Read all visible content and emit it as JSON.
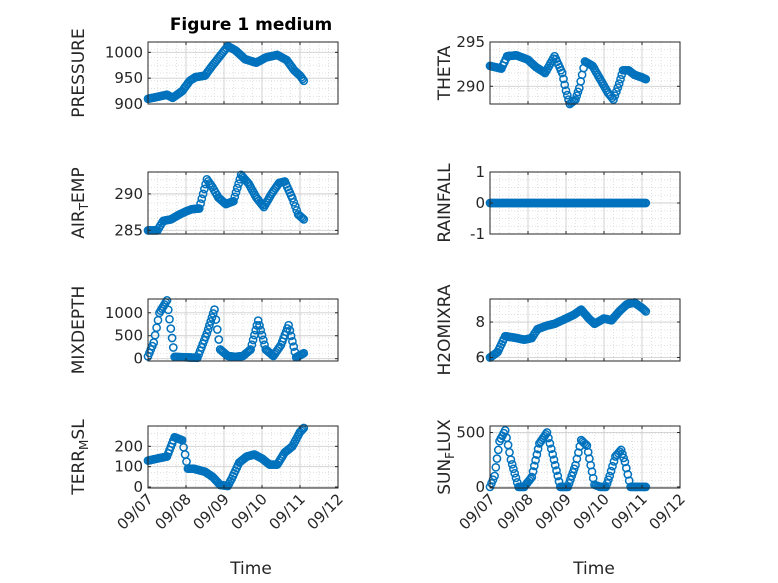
{
  "figure": {
    "title": "Figure 1 medium",
    "xlabel": "Time"
  },
  "colors": {
    "marker": "#0072bd",
    "axis": "#262626",
    "grid": "#d6d6d6"
  },
  "chart_data": [
    {
      "type": "scatter",
      "ylabel": "PRESSURE",
      "marker": "circle",
      "ylim": [
        900,
        1020
      ],
      "yticks": [
        900,
        950,
        1000
      ],
      "xlim": [
        0,
        5
      ],
      "grid": true,
      "x": [
        0.0,
        0.25,
        0.5,
        0.65,
        0.9,
        1.1,
        1.25,
        1.5,
        1.7,
        1.95,
        2.1,
        2.3,
        2.55,
        2.85,
        3.1,
        3.4,
        3.65,
        3.85,
        4.0,
        4.1
      ],
      "y": [
        910,
        914,
        918,
        912,
        925,
        945,
        952,
        955,
        975,
        998,
        1012,
        1004,
        987,
        980,
        990,
        995,
        985,
        965,
        955,
        945
      ]
    },
    {
      "type": "scatter",
      "ylabel": "THETA",
      "marker": "circle",
      "ylim": [
        288,
        295
      ],
      "yticks": [
        290,
        295
      ],
      "xlim": [
        0,
        5
      ],
      "grid": true,
      "x": [
        0.0,
        0.3,
        0.45,
        0.7,
        1.0,
        1.2,
        1.45,
        1.7,
        1.9,
        2.0,
        2.1,
        2.25,
        2.35,
        2.5,
        2.7,
        2.9,
        3.1,
        3.25,
        3.4,
        3.5,
        3.65,
        3.8,
        4.0,
        4.1
      ],
      "y": [
        292.3,
        292.0,
        293.4,
        293.5,
        293.0,
        292.2,
        291.5,
        293.4,
        291.5,
        289.5,
        288.0,
        288.5,
        289.8,
        292.8,
        292.3,
        290.8,
        289.3,
        288.5,
        290.3,
        291.8,
        291.8,
        291.3,
        291.0,
        290.8
      ]
    },
    {
      "type": "scatter",
      "ylabel": "AIR_TEMP",
      "marker": "circle",
      "ylim": [
        284.5,
        293
      ],
      "yticks": [
        285,
        290
      ],
      "xlim": [
        0,
        5
      ],
      "grid": true,
      "x": [
        0.0,
        0.25,
        0.4,
        0.6,
        0.8,
        1.0,
        1.15,
        1.35,
        1.55,
        1.7,
        1.85,
        2.05,
        2.25,
        2.45,
        2.65,
        2.85,
        3.05,
        3.25,
        3.45,
        3.6,
        3.8,
        3.95,
        4.1
      ],
      "y": [
        285.0,
        285.0,
        286.3,
        286.5,
        287.1,
        287.6,
        287.9,
        288.0,
        292.0,
        290.9,
        289.5,
        288.6,
        289.0,
        292.6,
        291.4,
        289.5,
        288.2,
        290.0,
        291.5,
        291.7,
        289.4,
        287.2,
        286.5
      ]
    },
    {
      "type": "scatter",
      "ylabel": "RAINFALL",
      "marker": "circle",
      "ylim": [
        -1,
        1
      ],
      "yticks": [
        -1,
        0,
        1
      ],
      "xlim": [
        0,
        5
      ],
      "grid": true,
      "x": [
        0.0,
        4.1
      ],
      "y": [
        0,
        0
      ]
    },
    {
      "type": "scatter",
      "ylabel": "MIXDEPTH",
      "marker": "circle",
      "ylim": [
        -50,
        1300
      ],
      "yticks": [
        0,
        500,
        1000
      ],
      "xlim": [
        0,
        5
      ],
      "grid": true,
      "x": [
        0.0,
        0.15,
        0.3,
        0.5,
        0.7,
        1.0,
        1.3,
        1.55,
        1.75,
        1.9,
        2.1,
        2.3,
        2.5,
        2.7,
        2.9,
        3.1,
        3.3,
        3.5,
        3.7,
        3.9,
        4.1
      ],
      "y": [
        50,
        350,
        1000,
        1270,
        40,
        30,
        20,
        550,
        1070,
        200,
        60,
        40,
        60,
        200,
        830,
        200,
        60,
        300,
        730,
        30,
        120
      ]
    },
    {
      "type": "scatter",
      "ylabel": "H2OMIXRA",
      "marker": "circle",
      "ylim": [
        5.8,
        9.3
      ],
      "yticks": [
        6,
        8
      ],
      "xlim": [
        0,
        5
      ],
      "grid": true,
      "x": [
        0.0,
        0.2,
        0.4,
        0.7,
        0.9,
        1.1,
        1.25,
        1.5,
        1.7,
        1.9,
        2.0,
        2.2,
        2.4,
        2.6,
        2.75,
        3.0,
        3.2,
        3.4,
        3.6,
        3.8,
        4.0,
        4.1
      ],
      "y": [
        6.0,
        6.3,
        7.2,
        7.1,
        7.0,
        7.1,
        7.6,
        7.8,
        7.9,
        8.1,
        8.2,
        8.4,
        8.7,
        8.2,
        7.9,
        8.2,
        8.1,
        8.6,
        9.0,
        9.1,
        8.8,
        8.6
      ]
    },
    {
      "type": "scatter",
      "ylabel": "TERR_MSL",
      "marker": "circle",
      "ylim": [
        -5,
        300
      ],
      "yticks": [
        0,
        100,
        200
      ],
      "xlim": [
        0,
        5
      ],
      "grid": true,
      "x": [
        0.0,
        0.25,
        0.5,
        0.7,
        0.9,
        1.05,
        1.2,
        1.5,
        1.7,
        1.9,
        2.1,
        2.2,
        2.4,
        2.6,
        2.8,
        3.0,
        3.2,
        3.4,
        3.6,
        3.8,
        4.0,
        4.1
      ],
      "y": [
        130,
        140,
        150,
        245,
        230,
        90,
        90,
        75,
        50,
        10,
        5,
        40,
        120,
        150,
        160,
        140,
        110,
        110,
        170,
        200,
        270,
        290
      ]
    },
    {
      "type": "scatter",
      "ylabel": "SUN_FLUX",
      "marker": "circle",
      "ylim": [
        -10,
        560
      ],
      "yticks": [
        0,
        500
      ],
      "xlim": [
        0,
        5
      ],
      "grid": true,
      "x": [
        0.0,
        0.12,
        0.25,
        0.4,
        0.55,
        0.75,
        0.9,
        1.1,
        1.3,
        1.5,
        1.65,
        1.85,
        2.05,
        2.25,
        2.4,
        2.55,
        2.75,
        2.9,
        3.05,
        3.15,
        3.3,
        3.45,
        3.55,
        3.7,
        3.9,
        4.1
      ],
      "y": [
        0,
        100,
        420,
        520,
        250,
        0,
        0,
        90,
        400,
        500,
        300,
        0,
        0,
        200,
        430,
        380,
        20,
        0,
        0,
        100,
        280,
        340,
        230,
        0,
        0,
        0
      ]
    }
  ],
  "x_ticks": [
    "09/07",
    "09/08",
    "09/09",
    "09/10",
    "09/11",
    "09/12"
  ]
}
